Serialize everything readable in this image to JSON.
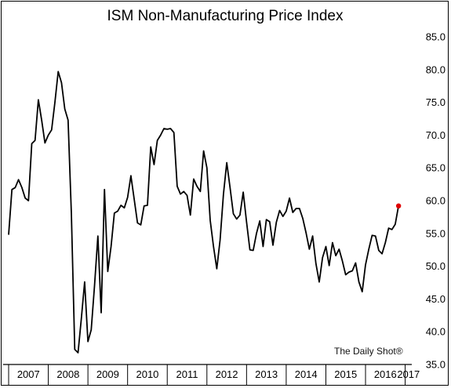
{
  "chart_data": {
    "type": "line",
    "title": "ISM Non-Manufacturing Price Index",
    "credit": "The Daily Shot®",
    "xlabel": "",
    "ylabel": "",
    "ylim": [
      35,
      85
    ],
    "y_ticks": [
      "35.0",
      "40.0",
      "45.0",
      "50.0",
      "55.0",
      "60.0",
      "65.0",
      "70.0",
      "75.0",
      "80.0",
      "85.0"
    ],
    "x_tick_labels": [
      "2007",
      "2008",
      "2009",
      "2010",
      "2011",
      "2012",
      "2013",
      "2014",
      "2015",
      "2016",
      "2017"
    ],
    "x_range": [
      "2007-01",
      "2017-03"
    ],
    "grid": false,
    "highlight_color": "#e00000",
    "line_color": "#000000",
    "series": [
      {
        "values": [
          [
            "2007-01",
            54.8
          ],
          [
            "2007-02",
            61.7
          ],
          [
            "2007-03",
            62.0
          ],
          [
            "2007-04",
            63.2
          ],
          [
            "2007-05",
            62.0
          ],
          [
            "2007-06",
            60.4
          ],
          [
            "2007-07",
            60.0
          ],
          [
            "2007-08",
            68.7
          ],
          [
            "2007-09",
            69.2
          ],
          [
            "2007-10",
            75.4
          ],
          [
            "2007-11",
            72.3
          ],
          [
            "2007-12",
            68.8
          ],
          [
            "2008-01",
            70.0
          ],
          [
            "2008-02",
            70.8
          ],
          [
            "2008-03",
            75.0
          ],
          [
            "2008-04",
            79.7
          ],
          [
            "2008-05",
            78.0
          ],
          [
            "2008-06",
            74.0
          ],
          [
            "2008-07",
            72.3
          ],
          [
            "2008-08",
            58.0
          ],
          [
            "2008-09",
            37.3
          ],
          [
            "2008-10",
            36.8
          ],
          [
            "2008-11",
            42.0
          ],
          [
            "2008-12",
            47.6
          ],
          [
            "2009-01",
            38.5
          ],
          [
            "2009-02",
            40.3
          ],
          [
            "2009-03",
            47.0
          ],
          [
            "2009-04",
            54.6
          ],
          [
            "2009-05",
            42.9
          ],
          [
            "2009-06",
            61.7
          ],
          [
            "2009-07",
            49.2
          ],
          [
            "2009-08",
            53.0
          ],
          [
            "2009-09",
            58.1
          ],
          [
            "2009-10",
            58.4
          ],
          [
            "2009-11",
            59.3
          ],
          [
            "2009-12",
            58.9
          ],
          [
            "2010-01",
            60.5
          ],
          [
            "2010-02",
            63.8
          ],
          [
            "2010-03",
            60.2
          ],
          [
            "2010-04",
            56.6
          ],
          [
            "2010-05",
            56.3
          ],
          [
            "2010-06",
            59.2
          ],
          [
            "2010-07",
            59.3
          ],
          [
            "2010-08",
            68.2
          ],
          [
            "2010-09",
            65.5
          ],
          [
            "2010-10",
            69.2
          ],
          [
            "2010-11",
            70.0
          ],
          [
            "2010-12",
            71.0
          ],
          [
            "2011-01",
            70.9
          ],
          [
            "2011-02",
            71.0
          ],
          [
            "2011-03",
            70.4
          ],
          [
            "2011-04",
            62.2
          ],
          [
            "2011-05",
            61.0
          ],
          [
            "2011-06",
            61.4
          ],
          [
            "2011-07",
            60.8
          ],
          [
            "2011-08",
            57.8
          ],
          [
            "2011-09",
            63.3
          ],
          [
            "2011-10",
            62.2
          ],
          [
            "2011-11",
            61.4
          ],
          [
            "2011-12",
            67.6
          ],
          [
            "2012-01",
            65.0
          ],
          [
            "2012-02",
            57.0
          ],
          [
            "2012-03",
            53.0
          ],
          [
            "2012-04",
            49.6
          ],
          [
            "2012-05",
            54.0
          ],
          [
            "2012-06",
            61.0
          ],
          [
            "2012-07",
            65.8
          ],
          [
            "2012-08",
            62.0
          ],
          [
            "2012-09",
            58.0
          ],
          [
            "2012-10",
            57.2
          ],
          [
            "2012-11",
            57.8
          ],
          [
            "2012-12",
            61.3
          ],
          [
            "2013-01",
            56.8
          ],
          [
            "2013-02",
            52.5
          ],
          [
            "2013-03",
            52.4
          ],
          [
            "2013-04",
            55.0
          ],
          [
            "2013-05",
            56.9
          ],
          [
            "2013-06",
            53.0
          ],
          [
            "2013-07",
            57.1
          ],
          [
            "2013-08",
            56.8
          ],
          [
            "2013-09",
            53.2
          ],
          [
            "2013-10",
            56.7
          ],
          [
            "2013-11",
            58.5
          ],
          [
            "2013-12",
            57.6
          ],
          [
            "2014-01",
            58.4
          ],
          [
            "2014-02",
            60.4
          ],
          [
            "2014-03",
            58.2
          ],
          [
            "2014-04",
            58.8
          ],
          [
            "2014-05",
            58.8
          ],
          [
            "2014-06",
            57.3
          ],
          [
            "2014-07",
            55.1
          ],
          [
            "2014-08",
            52.6
          ],
          [
            "2014-09",
            54.6
          ],
          [
            "2014-10",
            50.4
          ],
          [
            "2014-11",
            47.6
          ],
          [
            "2014-12",
            51.3
          ],
          [
            "2015-01",
            53.0
          ],
          [
            "2015-02",
            50.1
          ],
          [
            "2015-03",
            53.6
          ],
          [
            "2015-04",
            51.6
          ],
          [
            "2015-05",
            52.6
          ],
          [
            "2015-06",
            50.8
          ],
          [
            "2015-07",
            48.7
          ],
          [
            "2015-08",
            49.1
          ],
          [
            "2015-09",
            49.3
          ],
          [
            "2015-10",
            50.5
          ],
          [
            "2015-11",
            47.6
          ],
          [
            "2015-12",
            46.1
          ],
          [
            "2016-01",
            50.2
          ],
          [
            "2016-02",
            52.6
          ],
          [
            "2016-03",
            54.7
          ],
          [
            "2016-04",
            54.6
          ],
          [
            "2016-05",
            52.4
          ],
          [
            "2016-06",
            51.9
          ],
          [
            "2016-07",
            53.6
          ],
          [
            "2016-08",
            55.8
          ],
          [
            "2016-09",
            55.6
          ],
          [
            "2016-10",
            56.4
          ],
          [
            "2016-11",
            59.2
          ]
        ]
      }
    ]
  }
}
